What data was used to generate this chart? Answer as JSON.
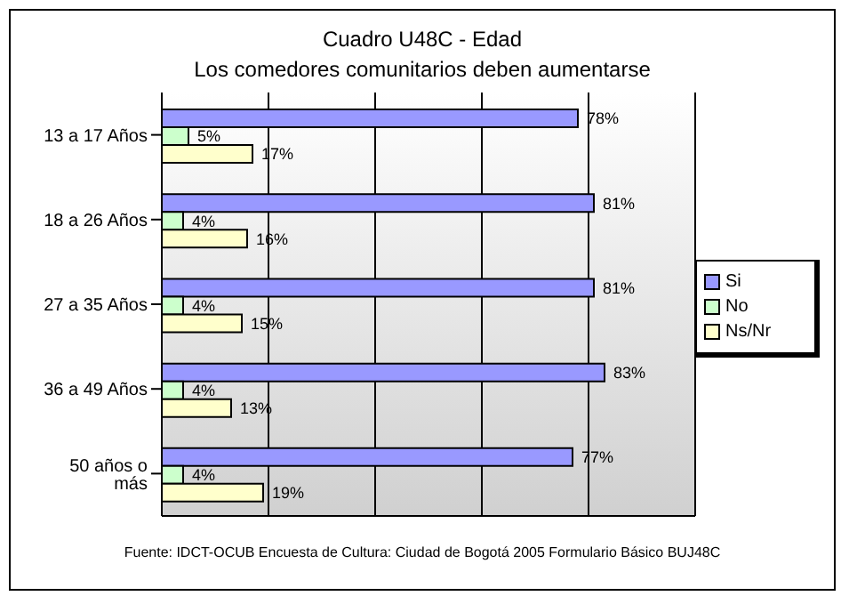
{
  "chart_data": {
    "type": "bar",
    "orientation": "horizontal",
    "title": "Cuadro U48C - Edad",
    "subtitle": "Los comedores comunitarios deben aumentarse",
    "categories": [
      "13 a 17 Años",
      "18 a 26 Años",
      "27 a 35 Años",
      "36 a 49 Años",
      "50 años o más"
    ],
    "series": [
      {
        "name": "Si",
        "color": "#9999ff",
        "values": [
          78,
          81,
          81,
          83,
          77
        ],
        "value_labels": [
          "78%",
          "81%",
          "81%",
          "83%",
          "77%"
        ]
      },
      {
        "name": "No",
        "color": "#ccffcc",
        "values": [
          5,
          4,
          4,
          4,
          4
        ],
        "value_labels": [
          "5%",
          "4%",
          "4%",
          "4%",
          "4%"
        ]
      },
      {
        "name": "Ns/Nr",
        "color": "#ffffcc",
        "values": [
          17,
          16,
          15,
          13,
          19
        ],
        "value_labels": [
          "17%",
          "16%",
          "15%",
          "13%",
          "19%"
        ]
      }
    ],
    "xlim": [
      0,
      100
    ],
    "tick_labels": "y",
    "grid": "x",
    "legend": "right",
    "annotations": [
      "Fuente: IDCT-OCUB Encuesta de Cultura: Ciudad de Bogotá 2005 Formulario Básico BUJ48C"
    ]
  }
}
